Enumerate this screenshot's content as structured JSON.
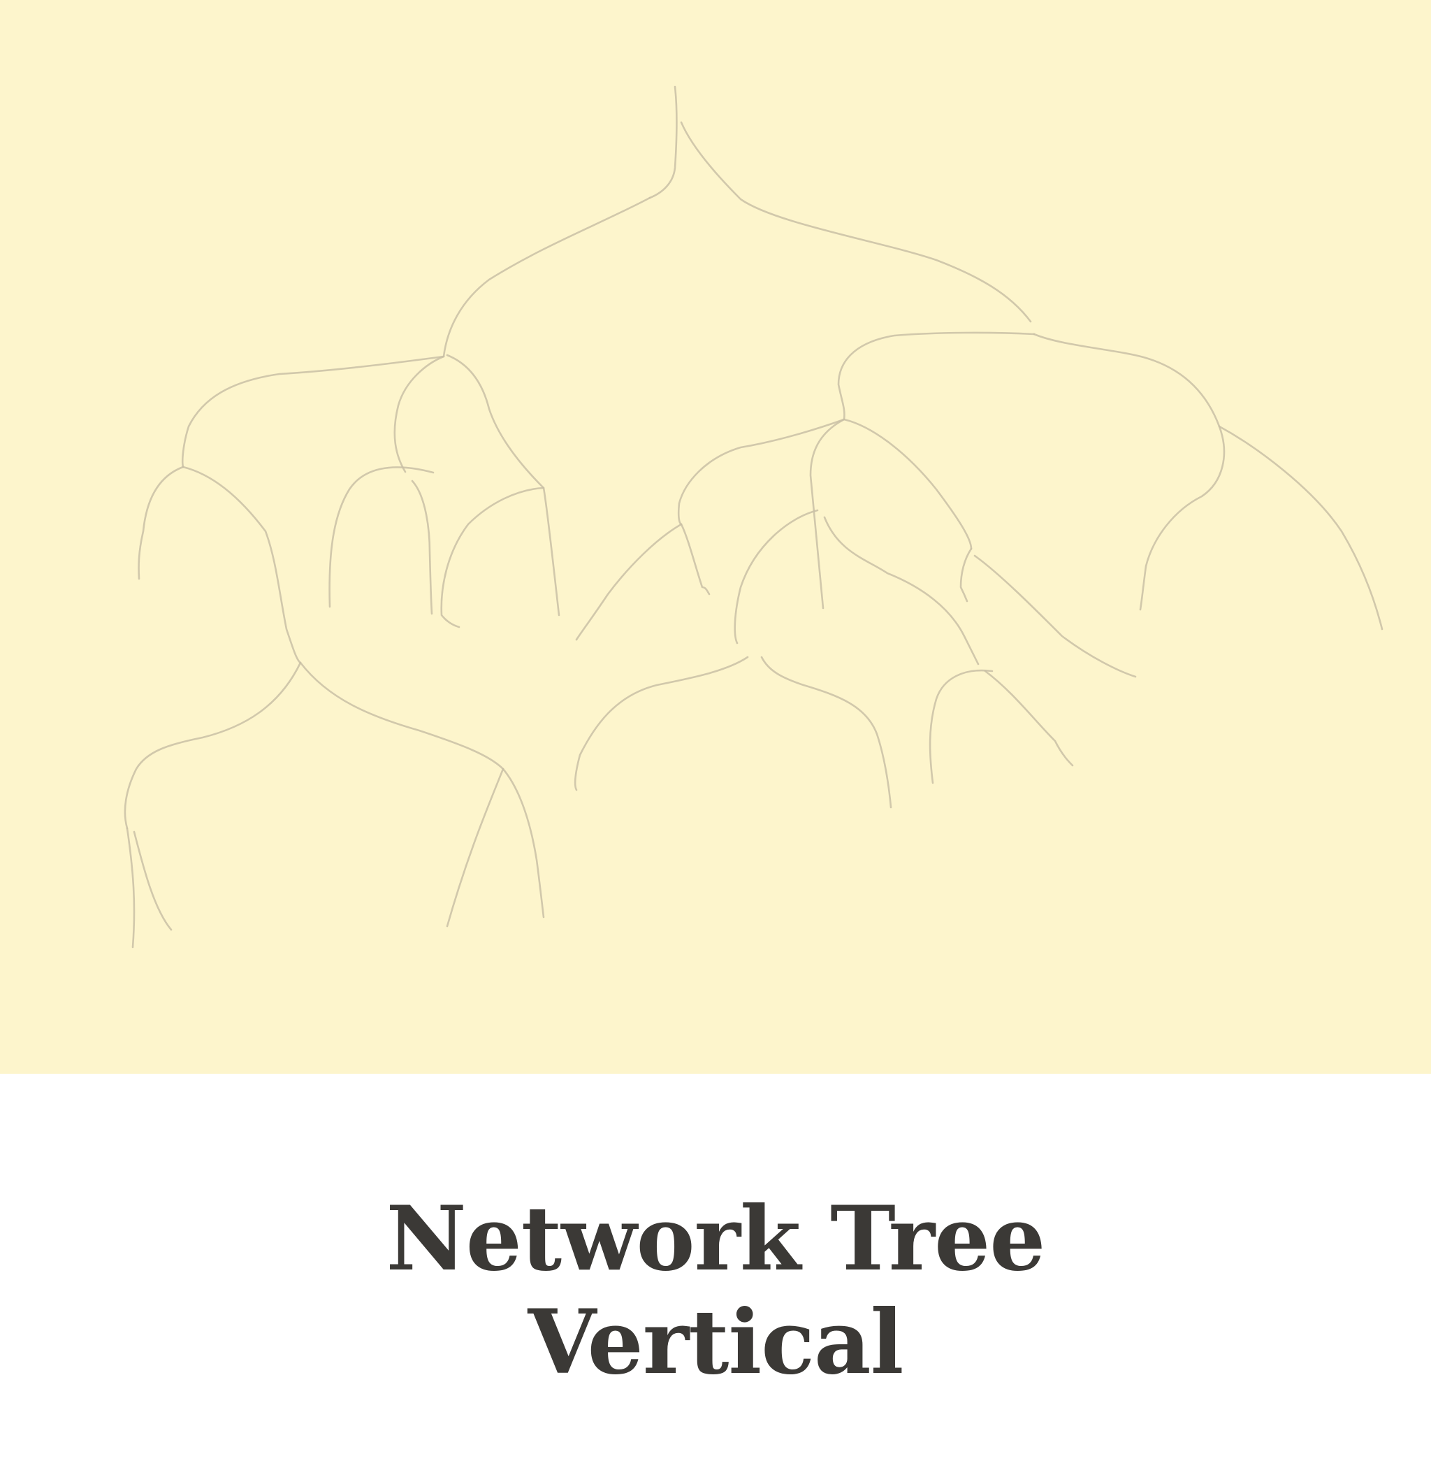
{
  "colors": {
    "canvas_background": "#fdf5cc",
    "caption_background": "#ffffff",
    "branch_stroke": "#c9c0a4",
    "title_text": "#3b3936"
  },
  "title": {
    "line1": "Network Tree",
    "line2": "Vertical"
  }
}
